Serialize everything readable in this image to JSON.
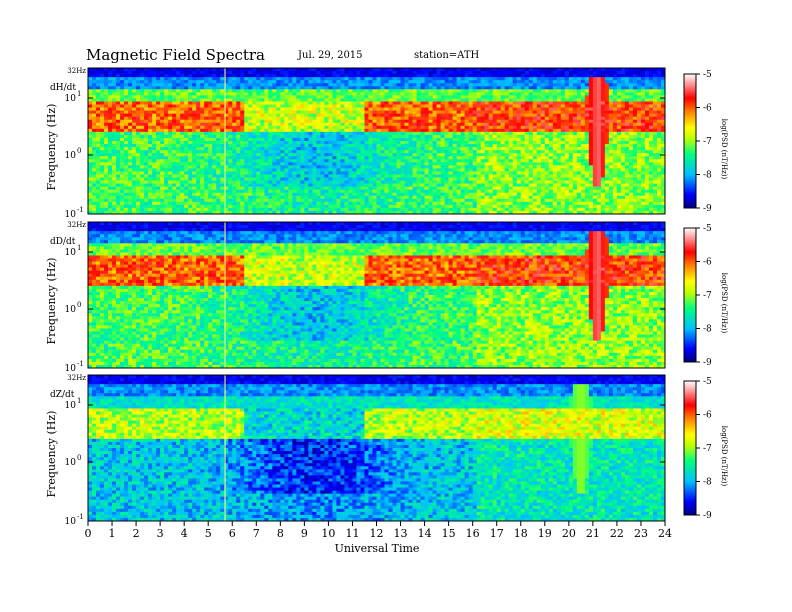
{
  "header": {
    "title": "Magnetic  Field  Spectra",
    "date": "Jul.  29, 2015",
    "station": "station=ATH"
  },
  "chart_data": {
    "type": "heatmap",
    "xlabel": "Universal Time",
    "x_ticks": [
      "0",
      "1",
      "2",
      "3",
      "4",
      "5",
      "6",
      "7",
      "8",
      "9",
      "10",
      "11",
      "12",
      "13",
      "14",
      "15",
      "16",
      "17",
      "18",
      "19",
      "20",
      "21",
      "22",
      "23",
      "24"
    ],
    "xlim": [
      0,
      24
    ],
    "y_axis_label": "Frequency  (Hz)",
    "y_tick_labels": {
      "top": "32Hz",
      "upper": "10",
      "upper_exp": "1",
      "middle": "10",
      "middle_exp": "0",
      "lower": "10",
      "lower_exp": "-1"
    },
    "colorbar": {
      "ticks": [
        "-5",
        "-6",
        "-7",
        "-8",
        "-9"
      ],
      "label": "log(PSD (nT/Hz))",
      "range": [
        -9,
        -5
      ],
      "colors": [
        "#000080",
        "#0000ff",
        "#00c0ff",
        "#00ff80",
        "#c0ff00",
        "#ffff00",
        "#ff8000",
        "#ff0000",
        "#ff9090",
        "#ffffff"
      ]
    },
    "panels": [
      {
        "name": "dH/dt",
        "features": {
          "band_level": 0.85,
          "storm_center_ut": 21.2,
          "storm_level": 1.0,
          "low_freq_quiet_center_ut": 9.5
        }
      },
      {
        "name": "dD/dt",
        "features": {
          "band_level": 0.85,
          "storm_center_ut": 21.2,
          "storm_level": 1.0,
          "low_freq_quiet_center_ut": 9.5
        }
      },
      {
        "name": "dZ/dt",
        "features": {
          "band_level": 0.55,
          "storm_center_ut": 20.5,
          "storm_level": 0.55,
          "low_freq_quiet_center_ut": 9.5
        }
      }
    ]
  }
}
